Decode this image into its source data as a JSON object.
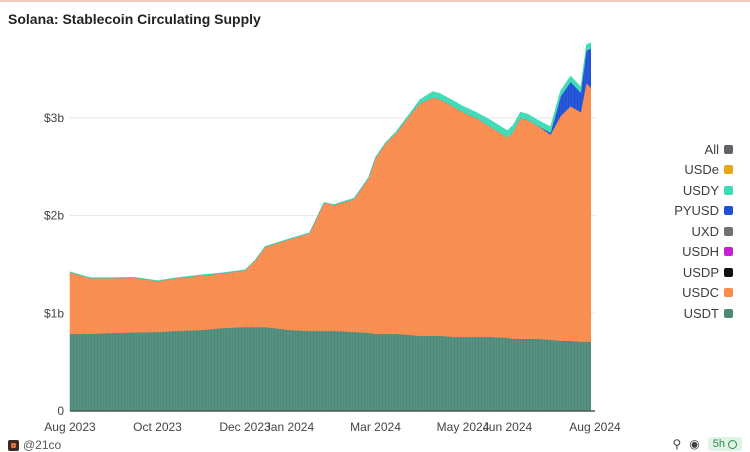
{
  "title": "Solana: Stablecoin Circulating Supply",
  "footer": {
    "handle": "@21co",
    "refresh_label": "5h"
  },
  "chart_data": {
    "type": "area",
    "stacked": true,
    "title": "Solana: Stablecoin Circulating Supply",
    "xlabel": "",
    "ylabel": "",
    "ylim": [
      0,
      3900000000
    ],
    "y_ticks": [
      {
        "value": 0,
        "label": "0"
      },
      {
        "value": 1000000000,
        "label": "$1b"
      },
      {
        "value": 2000000000,
        "label": "$2b"
      },
      {
        "value": 3000000000,
        "label": "$3b"
      }
    ],
    "x_range": [
      "2023-08-01",
      "2024-08-01"
    ],
    "x_ticks": [
      {
        "date": "2023-08-01",
        "label": "Aug 2023"
      },
      {
        "date": "2023-10-01",
        "label": "Oct 2023"
      },
      {
        "date": "2023-12-01",
        "label": "Dec 2023"
      },
      {
        "date": "2024-01-01",
        "label": "Jan 2024"
      },
      {
        "date": "2024-03-01",
        "label": "Mar 2024"
      },
      {
        "date": "2024-05-01",
        "label": "May 2024"
      },
      {
        "date": "2024-06-01",
        "label": "Jun 2024"
      },
      {
        "date": "2024-08-01",
        "label": "Aug 2024"
      }
    ],
    "grid": true,
    "legend_position": "right",
    "legend": [
      {
        "name": "All",
        "color": "#5f6368"
      },
      {
        "name": "USDe",
        "color": "#e6a817"
      },
      {
        "name": "USDY",
        "color": "#3ddbb5"
      },
      {
        "name": "PYUSD",
        "color": "#1f4fd6"
      },
      {
        "name": "UXD",
        "color": "#707070"
      },
      {
        "name": "USDH",
        "color": "#c81fd6"
      },
      {
        "name": "USDP",
        "color": "#111111"
      },
      {
        "name": "USDC",
        "color": "#f98b4d"
      },
      {
        "name": "USDT",
        "color": "#4d8a7a"
      }
    ],
    "x": [
      "2023-08-01",
      "2023-08-15",
      "2023-09-01",
      "2023-09-15",
      "2023-10-01",
      "2023-10-15",
      "2023-11-01",
      "2023-11-15",
      "2023-12-01",
      "2023-12-08",
      "2023-12-15",
      "2024-01-01",
      "2024-01-15",
      "2024-01-25",
      "2024-02-01",
      "2024-02-15",
      "2024-02-25",
      "2024-03-01",
      "2024-03-08",
      "2024-03-15",
      "2024-03-25",
      "2024-04-01",
      "2024-04-10",
      "2024-04-15",
      "2024-04-25",
      "2024-05-01",
      "2024-05-10",
      "2024-05-20",
      "2024-06-01",
      "2024-06-05",
      "2024-06-10",
      "2024-06-15",
      "2024-06-22",
      "2024-07-01",
      "2024-07-08",
      "2024-07-15",
      "2024-07-22",
      "2024-07-26",
      "2024-07-29"
    ],
    "series": [
      {
        "name": "USDT",
        "color": "#4d8a7a",
        "values": [
          790000000,
          790000000,
          800000000,
          805000000,
          810000000,
          820000000,
          830000000,
          850000000,
          860000000,
          860000000,
          860000000,
          830000000,
          820000000,
          820000000,
          820000000,
          810000000,
          800000000,
          790000000,
          790000000,
          790000000,
          780000000,
          770000000,
          770000000,
          770000000,
          760000000,
          760000000,
          760000000,
          760000000,
          750000000,
          740000000,
          740000000,
          740000000,
          740000000,
          730000000,
          720000000,
          720000000,
          710000000,
          710000000,
          710000000
        ]
      },
      {
        "name": "USDC",
        "color": "#f98b4d",
        "values": [
          630000000,
          570000000,
          560000000,
          560000000,
          520000000,
          540000000,
          560000000,
          560000000,
          580000000,
          680000000,
          820000000,
          930000000,
          1000000000,
          1310000000,
          1290000000,
          1360000000,
          1580000000,
          1800000000,
          1950000000,
          2050000000,
          2250000000,
          2380000000,
          2440000000,
          2420000000,
          2350000000,
          2300000000,
          2240000000,
          2150000000,
          2050000000,
          2120000000,
          2260000000,
          2240000000,
          2180000000,
          2100000000,
          2300000000,
          2400000000,
          2350000000,
          2650000000,
          2600000000
        ]
      },
      {
        "name": "PYUSD",
        "color": "#1f4fd6",
        "values": [
          0,
          0,
          0,
          0,
          0,
          0,
          0,
          0,
          0,
          0,
          0,
          0,
          0,
          0,
          0,
          0,
          0,
          0,
          0,
          0,
          0,
          0,
          0,
          0,
          0,
          0,
          0,
          0,
          0,
          0,
          0,
          0,
          0,
          20000000,
          200000000,
          250000000,
          200000000,
          330000000,
          400000000
        ]
      },
      {
        "name": "USDY",
        "color": "#3ddbb5",
        "values": [
          5000000,
          5000000,
          5000000,
          5000000,
          5000000,
          5000000,
          5000000,
          5000000,
          5000000,
          5000000,
          5000000,
          5000000,
          5000000,
          5000000,
          5000000,
          10000000,
          10000000,
          10000000,
          10000000,
          15000000,
          20000000,
          40000000,
          60000000,
          60000000,
          60000000,
          60000000,
          60000000,
          70000000,
          70000000,
          70000000,
          60000000,
          60000000,
          60000000,
          60000000,
          60000000,
          60000000,
          60000000,
          60000000,
          60000000
        ]
      }
    ]
  }
}
